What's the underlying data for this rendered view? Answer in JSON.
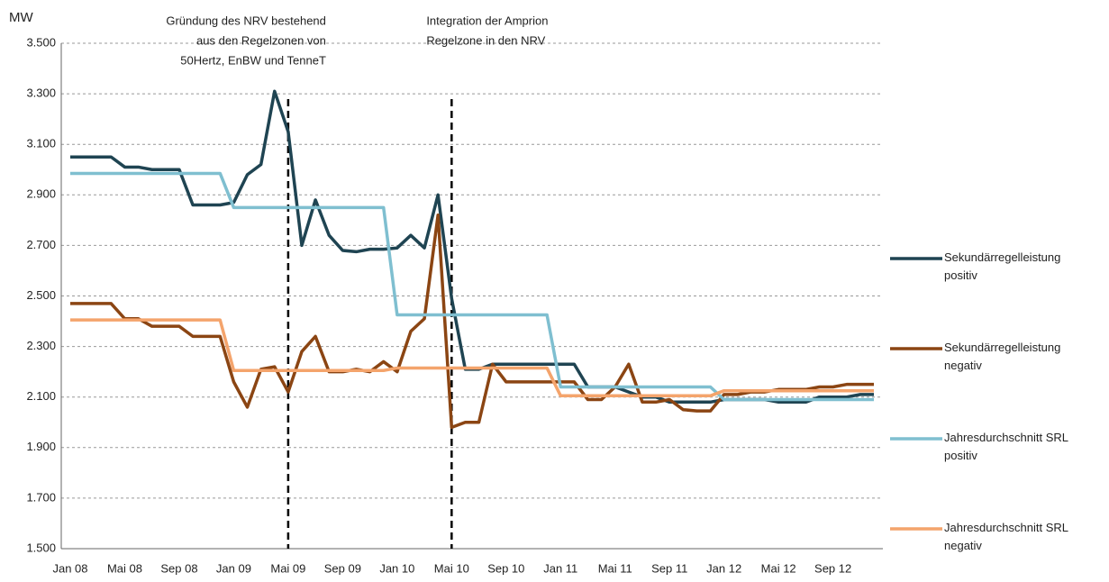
{
  "chart_data": {
    "type": "line",
    "y_axis_label": "MW",
    "categories": [
      "Jan 08",
      null,
      null,
      null,
      "Mai 08",
      null,
      null,
      null,
      "Sep 08",
      null,
      null,
      null,
      "Jan 09",
      null,
      null,
      null,
      "Mai 09",
      null,
      null,
      null,
      "Sep 09",
      null,
      null,
      null,
      "Jan 10",
      null,
      null,
      null,
      "Mai 10",
      null,
      null,
      null,
      "Sep 10",
      null,
      null,
      null,
      "Jan 11",
      null,
      null,
      null,
      "Mai 11",
      null,
      null,
      null,
      "Sep 11",
      null,
      null,
      null,
      "Jan 12",
      null,
      null,
      null,
      "Mai 12",
      null,
      null,
      null,
      "Sep 12",
      null,
      null,
      null
    ],
    "ylim": [
      1500,
      3500
    ],
    "yticks": [
      {
        "value": 1500,
        "label": "1.500"
      },
      {
        "value": 1700,
        "label": "1.700"
      },
      {
        "value": 1900,
        "label": "1.900"
      },
      {
        "value": 2100,
        "label": "2.100"
      },
      {
        "value": 2300,
        "label": "2.300"
      },
      {
        "value": 2500,
        "label": "2.500"
      },
      {
        "value": 2700,
        "label": "2.700"
      },
      {
        "value": 2900,
        "label": "2.900"
      },
      {
        "value": 3100,
        "label": "3.100"
      },
      {
        "value": 3300,
        "label": "3.300"
      },
      {
        "value": 3500,
        "label": "3.500"
      }
    ],
    "grid": true,
    "legend": "right",
    "series": [
      {
        "name": "Sekundärregelleistung positiv",
        "color": "#1f4452",
        "values": [
          3050,
          3050,
          3050,
          3050,
          3010,
          3010,
          3000,
          3000,
          3000,
          2860,
          2860,
          2860,
          2870,
          2980,
          3020,
          3310,
          3150,
          2700,
          2880,
          2740,
          2680,
          2675,
          2685,
          2685,
          2690,
          2740,
          2690,
          2900,
          2490,
          2210,
          2210,
          2230,
          2230,
          2230,
          2230,
          2230,
          2230,
          2230,
          2140,
          2140,
          2140,
          2120,
          2100,
          2100,
          2080,
          2080,
          2080,
          2080,
          2090,
          2090,
          2090,
          2090,
          2080,
          2080,
          2080,
          2100,
          2100,
          2100,
          2110,
          2110
        ]
      },
      {
        "name": "Sekundärregelleistung negativ",
        "color": "#8b4513",
        "values": [
          2470,
          2470,
          2470,
          2470,
          2410,
          2410,
          2380,
          2380,
          2380,
          2340,
          2340,
          2340,
          2160,
          2060,
          2210,
          2220,
          2120,
          2280,
          2340,
          2200,
          2200,
          2210,
          2200,
          2240,
          2200,
          2360,
          2410,
          2820,
          1980,
          2000,
          2000,
          2230,
          2160,
          2160,
          2160,
          2160,
          2160,
          2160,
          2090,
          2090,
          2140,
          2230,
          2080,
          2080,
          2090,
          2050,
          2045,
          2045,
          2110,
          2110,
          2120,
          2120,
          2130,
          2130,
          2130,
          2140,
          2140,
          2150,
          2150,
          2150
        ]
      },
      {
        "name": "Jahresdurchschnitt SRL positiv",
        "color": "#7fbfd0",
        "values": [
          2985,
          2985,
          2985,
          2985,
          2985,
          2985,
          2985,
          2985,
          2985,
          2985,
          2985,
          2985,
          2850,
          2850,
          2850,
          2850,
          2850,
          2850,
          2850,
          2850,
          2850,
          2850,
          2850,
          2850,
          2425,
          2425,
          2425,
          2425,
          2425,
          2425,
          2425,
          2425,
          2425,
          2425,
          2425,
          2425,
          2140,
          2140,
          2140,
          2140,
          2140,
          2140,
          2140,
          2140,
          2140,
          2140,
          2140,
          2140,
          2090,
          2090,
          2090,
          2090,
          2090,
          2090,
          2090,
          2090,
          2090,
          2090,
          2090,
          2090
        ]
      },
      {
        "name": "Jahresdurchschnitt SRL negativ",
        "color": "#f4a46c",
        "values": [
          2405,
          2405,
          2405,
          2405,
          2405,
          2405,
          2405,
          2405,
          2405,
          2405,
          2405,
          2405,
          2205,
          2205,
          2205,
          2205,
          2205,
          2205,
          2205,
          2205,
          2205,
          2205,
          2205,
          2205,
          2215,
          2215,
          2215,
          2215,
          2215,
          2215,
          2215,
          2215,
          2215,
          2215,
          2215,
          2215,
          2105,
          2105,
          2105,
          2105,
          2105,
          2105,
          2105,
          2105,
          2105,
          2105,
          2105,
          2105,
          2125,
          2125,
          2125,
          2125,
          2125,
          2125,
          2125,
          2125,
          2125,
          2125,
          2125,
          2125
        ]
      }
    ],
    "annotations": [
      {
        "x": "Mai 09",
        "align": "right",
        "lines": [
          "Gründung des NRV bestehend",
          "aus den Regelzonen von",
          "50Hertz, EnBW und TenneT"
        ]
      },
      {
        "x": "Mai 10",
        "align": "left",
        "lines": [
          "Integration der Amprion",
          "Regelzone in den NRV"
        ]
      }
    ]
  }
}
